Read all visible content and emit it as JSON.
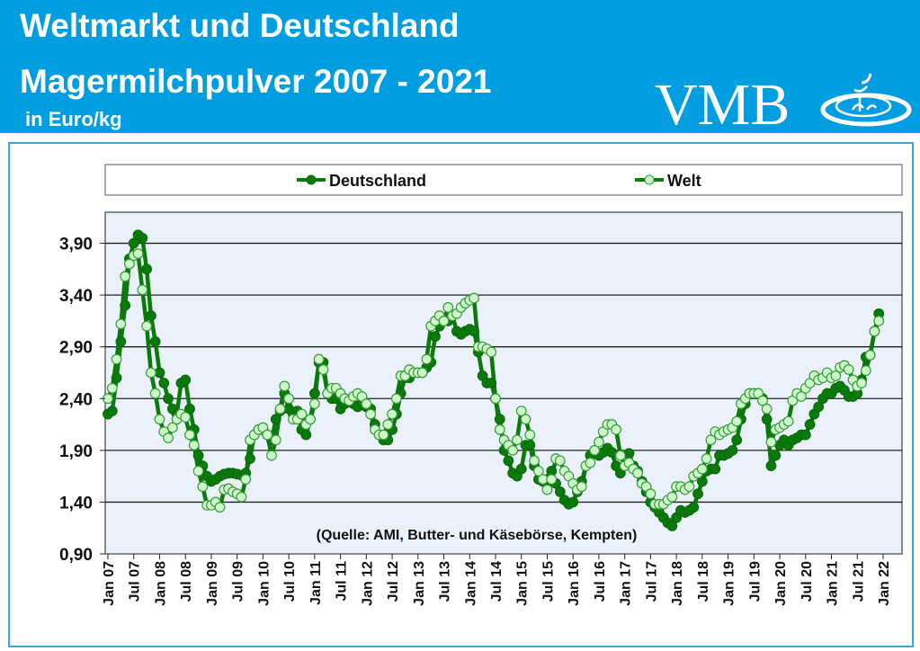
{
  "header": {
    "title_line1": "Weltmarkt und Deutschland",
    "title_line2": "Magermilchpulver 2007 - 2021",
    "unit": "in Euro/kg",
    "logo_text": "VMB"
  },
  "colors": {
    "header_bg": "#009ee0",
    "line": "#0a7a0a",
    "deutschland_marker": "#0a7a0a",
    "welt_marker": "#ccf7c8",
    "plot_bg": "#eaf1fa"
  },
  "chart_data": {
    "type": "line",
    "title": "Weltmarkt und Deutschland Magermilchpulver 2007 - 2021",
    "ylabel": "in Euro/kg",
    "ylim": [
      0.9,
      4.2
    ],
    "yticks": [
      "0,90",
      "1,40",
      "1,90",
      "2,40",
      "2,90",
      "3,40",
      "3,90"
    ],
    "ytick_values": [
      0.9,
      1.4,
      1.9,
      2.4,
      2.9,
      3.4,
      3.9
    ],
    "xticks": [
      "Jan 07",
      "Jul 07",
      "Jan 08",
      "Jul 08",
      "Jan 09",
      "Jul 09",
      "Jan 10",
      "Jul 10",
      "Jan 11",
      "Jul 11",
      "Jan 12",
      "Jul 12",
      "Jan 13",
      "Jul 13",
      "Jan 14",
      "Jul 14",
      "Jan 15",
      "Jul 15",
      "Jan 16",
      "Jul 16",
      "Jan 17",
      "Jul 17",
      "Jan 18",
      "Jul 18",
      "Jan 19",
      "Jul 19",
      "Jan 20",
      "Jul 20",
      "Jan 21",
      "Jul 21",
      "Jan 22"
    ],
    "x_start": "Jan 07",
    "x_step": "monthly",
    "grid": "horizontal",
    "legend_position": "top",
    "annotation": "(Quelle: AMI, Butter- und Käsebörse, Kempten)",
    "series": [
      {
        "name": "Deutschland",
        "values": [
          2.25,
          2.28,
          2.6,
          2.95,
          3.3,
          3.75,
          3.9,
          3.98,
          3.95,
          3.65,
          3.2,
          2.95,
          2.65,
          2.55,
          2.4,
          2.3,
          2.25,
          2.55,
          2.58,
          2.3,
          2.1,
          1.85,
          1.75,
          1.65,
          1.6,
          1.62,
          1.65,
          1.67,
          1.68,
          1.68,
          1.67,
          1.66,
          1.68,
          1.82,
          2.05,
          2.1,
          2.1,
          2.05,
          2.0,
          2.2,
          2.28,
          2.45,
          2.3,
          2.25,
          2.28,
          2.1,
          2.05,
          2.2,
          2.45,
          2.75,
          2.75,
          2.45,
          2.4,
          2.4,
          2.3,
          2.35,
          2.38,
          2.35,
          2.32,
          2.35,
          2.32,
          2.3,
          2.15,
          2.05,
          2.0,
          2.0,
          2.1,
          2.25,
          2.45,
          2.6,
          2.6,
          2.65,
          2.65,
          2.65,
          2.7,
          2.75,
          3.0,
          3.1,
          3.15,
          3.15,
          3.2,
          3.05,
          3.02,
          3.05,
          3.07,
          3.05,
          2.85,
          2.62,
          2.55,
          2.55,
          2.4,
          2.2,
          1.9,
          1.8,
          1.68,
          1.65,
          1.72,
          1.95,
          1.95,
          1.75,
          1.62,
          1.6,
          1.62,
          1.7,
          1.58,
          1.5,
          1.42,
          1.38,
          1.4,
          1.5,
          1.6,
          1.75,
          1.85,
          1.9,
          1.85,
          1.88,
          1.92,
          1.88,
          1.75,
          1.68,
          1.75,
          1.87,
          1.75,
          1.7,
          1.6,
          1.5,
          1.4,
          1.35,
          1.3,
          1.25,
          1.2,
          1.17,
          1.25,
          1.32,
          1.3,
          1.32,
          1.35,
          1.48,
          1.6,
          1.7,
          1.72,
          1.72,
          1.85,
          1.85,
          1.87,
          1.9,
          2.0,
          2.2,
          2.35,
          2.45,
          2.45,
          2.45,
          2.4,
          2.2,
          1.75,
          1.85,
          1.95,
          2.0,
          1.95,
          2.0,
          2.02,
          2.05,
          2.05,
          2.15,
          2.25,
          2.32,
          2.4,
          2.45,
          2.45,
          2.5,
          2.52,
          2.48,
          2.42,
          2.42,
          2.45,
          2.58,
          2.8,
          2.82,
          3.05,
          3.22
        ]
      },
      {
        "name": "Welt",
        "values": [
          2.4,
          2.5,
          2.78,
          3.12,
          3.58,
          3.7,
          3.78,
          3.8,
          3.45,
          3.1,
          2.65,
          2.45,
          2.2,
          2.08,
          2.02,
          2.12,
          2.2,
          2.25,
          2.22,
          2.05,
          1.95,
          1.7,
          1.55,
          1.37,
          1.37,
          1.4,
          1.35,
          1.52,
          1.53,
          1.5,
          1.48,
          1.45,
          1.62,
          2.0,
          2.05,
          2.1,
          2.12,
          2.05,
          1.85,
          2.0,
          2.3,
          2.52,
          2.4,
          2.2,
          2.2,
          2.25,
          2.15,
          2.2,
          2.35,
          2.78,
          2.68,
          2.45,
          2.5,
          2.5,
          2.45,
          2.4,
          2.38,
          2.42,
          2.45,
          2.42,
          2.35,
          2.25,
          2.1,
          2.05,
          2.05,
          2.15,
          2.25,
          2.4,
          2.62,
          2.62,
          2.68,
          2.65,
          2.65,
          2.65,
          2.78,
          3.1,
          3.15,
          3.2,
          3.15,
          3.28,
          3.2,
          3.22,
          3.28,
          3.32,
          3.35,
          3.37,
          2.9,
          2.9,
          2.88,
          2.85,
          2.4,
          2.1,
          2.0,
          1.95,
          1.9,
          2.0,
          2.28,
          2.2,
          2.05,
          1.8,
          1.7,
          1.62,
          1.52,
          1.62,
          1.82,
          1.8,
          1.7,
          1.65,
          1.58,
          1.52,
          1.55,
          1.75,
          1.78,
          1.9,
          1.98,
          2.08,
          2.15,
          2.15,
          2.1,
          1.85,
          1.75,
          1.78,
          1.72,
          1.68,
          1.58,
          1.55,
          1.48,
          1.38,
          1.38,
          1.38,
          1.42,
          1.45,
          1.55,
          1.55,
          1.52,
          1.55,
          1.65,
          1.68,
          1.72,
          1.82,
          2.0,
          2.08,
          2.05,
          2.08,
          2.1,
          2.12,
          2.18,
          2.35,
          2.4,
          2.45,
          2.45,
          2.45,
          2.38,
          2.3,
          1.98,
          2.1,
          2.12,
          2.15,
          2.18,
          2.38,
          2.45,
          2.42,
          2.5,
          2.55,
          2.62,
          2.58,
          2.6,
          2.65,
          2.6,
          2.62,
          2.7,
          2.72,
          2.68,
          2.58,
          2.52,
          2.55,
          2.67,
          2.82,
          3.05,
          3.15
        ]
      }
    ]
  }
}
